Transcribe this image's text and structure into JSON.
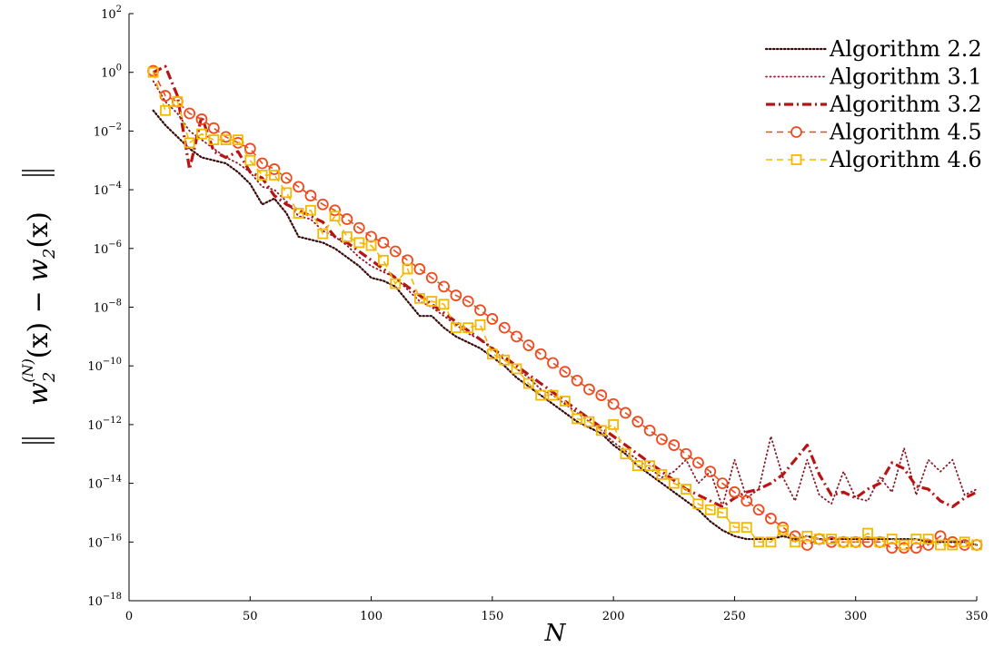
{
  "chart_data": {
    "type": "line",
    "title": "",
    "xlabel": "N",
    "ylabel": "‖w₂⁽ᴺ⁾(x) − w₂(x)‖",
    "ylabel_parts": {
      "w": "w",
      "sub": "2",
      "sup": "(N)",
      "mid": "(x) − ",
      "w2": "w",
      "sub2": "2",
      "end": "(x)"
    },
    "xlim": [
      0,
      350
    ],
    "ylim_log10": [
      -18,
      2
    ],
    "y_scale": "log",
    "grid": false,
    "legend_position": "top-right",
    "x_ticks": [
      {
        "value": 0,
        "label": "0"
      },
      {
        "value": 50,
        "label": "50"
      },
      {
        "value": 100,
        "label": "100"
      },
      {
        "value": 150,
        "label": "150"
      },
      {
        "value": 200,
        "label": "200"
      },
      {
        "value": 250,
        "label": "250"
      },
      {
        "value": 300,
        "label": "300"
      },
      {
        "value": 350,
        "label": "350"
      }
    ],
    "y_ticks": [
      {
        "exp": 2,
        "base": "10",
        "sup": "2"
      },
      {
        "exp": 0,
        "base": "10",
        "sup": "0"
      },
      {
        "exp": -2,
        "base": "10",
        "sup": "−2"
      },
      {
        "exp": -4,
        "base": "10",
        "sup": "−4"
      },
      {
        "exp": -6,
        "base": "10",
        "sup": "−6"
      },
      {
        "exp": -8,
        "base": "10",
        "sup": "−8"
      },
      {
        "exp": -10,
        "base": "10",
        "sup": "−10"
      },
      {
        "exp": -12,
        "base": "10",
        "sup": "−12"
      },
      {
        "exp": -14,
        "base": "10",
        "sup": "−14"
      },
      {
        "exp": -16,
        "base": "10",
        "sup": "−16"
      },
      {
        "exp": -18,
        "base": "10",
        "sup": "−18"
      }
    ],
    "series": [
      {
        "name": "Algorithm 2.2",
        "color": "#3a0a0a",
        "style": "loosely-dotted-dense",
        "marker": "none",
        "x": [
          10,
          15,
          20,
          25,
          30,
          35,
          40,
          45,
          50,
          55,
          60,
          65,
          70,
          75,
          80,
          85,
          90,
          95,
          100,
          105,
          110,
          115,
          120,
          125,
          130,
          135,
          140,
          145,
          150,
          155,
          160,
          165,
          170,
          175,
          180,
          185,
          190,
          195,
          200,
          205,
          210,
          215,
          220,
          225,
          230,
          235,
          240,
          245,
          250,
          255,
          260,
          265,
          270,
          275,
          280,
          285,
          290,
          295,
          300,
          305,
          310,
          315,
          320,
          325,
          330,
          335,
          340,
          345,
          350
        ],
        "y_log10": [
          -1.3,
          -1.8,
          -2.2,
          -2.6,
          -2.9,
          -3.0,
          -3.1,
          -3.4,
          -3.8,
          -4.5,
          -4.3,
          -4.8,
          -5.6,
          -5.7,
          -5.8,
          -6.0,
          -6.3,
          -6.6,
          -7.0,
          -7.1,
          -7.3,
          -7.8,
          -8.3,
          -8.3,
          -8.7,
          -9.0,
          -9.2,
          -9.4,
          -9.7,
          -10.0,
          -10.4,
          -10.7,
          -11.0,
          -11.3,
          -11.6,
          -11.9,
          -12.1,
          -12.3,
          -12.7,
          -13.0,
          -13.4,
          -13.7,
          -14.0,
          -14.3,
          -14.6,
          -14.9,
          -15.3,
          -15.6,
          -15.8,
          -15.9,
          -15.9,
          -15.9,
          -15.8,
          -15.9,
          -15.8,
          -15.9,
          -15.9,
          -15.9,
          -15.9,
          -15.9,
          -15.9,
          -15.9,
          -15.9,
          -15.9,
          -16.0,
          -16.0,
          -16.0,
          -16.0,
          -16.1
        ]
      },
      {
        "name": "Algorithm 3.1",
        "color": "#8b1a2a",
        "style": "dotted",
        "marker": "none",
        "x": [
          10,
          15,
          20,
          25,
          30,
          35,
          40,
          45,
          50,
          55,
          60,
          65,
          70,
          75,
          80,
          85,
          90,
          95,
          100,
          105,
          110,
          115,
          120,
          125,
          130,
          135,
          140,
          145,
          150,
          155,
          160,
          165,
          170,
          175,
          180,
          185,
          190,
          195,
          200,
          205,
          210,
          215,
          220,
          225,
          230,
          235,
          240,
          245,
          250,
          255,
          260,
          265,
          270,
          275,
          280,
          285,
          290,
          295,
          300,
          305,
          310,
          315,
          320,
          325,
          330,
          335,
          340,
          345,
          350
        ],
        "y_log10": [
          -0.3,
          -1.0,
          -1.4,
          -2.0,
          -2.3,
          -2.6,
          -2.9,
          -3.1,
          -3.4,
          -3.9,
          -4.0,
          -4.4,
          -4.9,
          -5.0,
          -5.4,
          -5.6,
          -5.9,
          -6.3,
          -6.6,
          -6.8,
          -7.0,
          -7.4,
          -7.8,
          -8.0,
          -8.3,
          -8.6,
          -8.9,
          -9.1,
          -9.4,
          -9.8,
          -10.1,
          -10.4,
          -10.8,
          -11.0,
          -11.3,
          -11.6,
          -11.9,
          -12.2,
          -12.6,
          -12.9,
          -13.2,
          -13.5,
          -13.8,
          -13.6,
          -13.2,
          -14.0,
          -13.6,
          -14.8,
          -13.2,
          -14.5,
          -14.2,
          -12.4,
          -13.8,
          -14.6,
          -13.2,
          -14.4,
          -14.7,
          -13.6,
          -14.5,
          -14.6,
          -13.8,
          -14.3,
          -12.8,
          -14.4,
          -13.2,
          -13.6,
          -13.2,
          -14.4,
          -14.2
        ]
      },
      {
        "name": "Algorithm 3.2",
        "color": "#b81414",
        "style": "dash-dot",
        "marker": "none",
        "x": [
          10,
          15,
          20,
          25,
          30,
          35,
          40,
          45,
          50,
          55,
          60,
          65,
          70,
          75,
          80,
          85,
          90,
          95,
          100,
          105,
          110,
          115,
          120,
          125,
          130,
          135,
          140,
          145,
          150,
          155,
          160,
          165,
          170,
          175,
          180,
          185,
          190,
          195,
          200,
          205,
          210,
          215,
          220,
          225,
          230,
          235,
          240,
          245,
          250,
          255,
          260,
          265,
          270,
          275,
          280,
          285,
          290,
          295,
          300,
          305,
          310,
          315,
          320,
          325,
          330,
          335,
          340,
          345,
          350
        ],
        "y_log10": [
          0.0,
          0.2,
          -0.8,
          -3.3,
          -1.5,
          -2.7,
          -2.9,
          -2.7,
          -3.4,
          -3.6,
          -4.2,
          -4.5,
          -4.7,
          -4.9,
          -5.1,
          -5.6,
          -5.8,
          -6.1,
          -6.4,
          -6.7,
          -7.0,
          -7.3,
          -7.6,
          -7.9,
          -8.2,
          -8.5,
          -8.8,
          -9.1,
          -9.4,
          -9.7,
          -10.0,
          -10.3,
          -10.6,
          -10.9,
          -11.2,
          -11.5,
          -11.8,
          -12.1,
          -12.4,
          -12.7,
          -13.0,
          -13.3,
          -13.6,
          -13.9,
          -14.2,
          -14.4,
          -14.6,
          -14.8,
          -14.5,
          -14.3,
          -14.2,
          -14.0,
          -13.7,
          -13.2,
          -12.7,
          -13.7,
          -14.4,
          -14.3,
          -14.5,
          -14.2,
          -14.0,
          -13.3,
          -13.5,
          -14.1,
          -14.2,
          -14.6,
          -14.8,
          -14.5,
          -14.3
        ]
      },
      {
        "name": "Algorithm 4.5",
        "color": "#ee4a1e",
        "style": "dashed",
        "marker": "circle",
        "x": [
          10,
          15,
          20,
          25,
          30,
          35,
          40,
          45,
          50,
          55,
          60,
          65,
          70,
          75,
          80,
          85,
          90,
          95,
          100,
          105,
          110,
          115,
          120,
          125,
          130,
          135,
          140,
          145,
          150,
          155,
          160,
          165,
          170,
          175,
          180,
          185,
          190,
          195,
          200,
          205,
          210,
          215,
          220,
          225,
          230,
          235,
          240,
          245,
          250,
          255,
          260,
          265,
          270,
          275,
          280,
          285,
          290,
          295,
          300,
          305,
          310,
          315,
          320,
          325,
          330,
          335,
          340,
          345,
          350
        ],
        "y_log10": [
          0.05,
          -0.8,
          -1.0,
          -1.4,
          -1.6,
          -1.9,
          -2.2,
          -2.4,
          -2.6,
          -3.1,
          -3.3,
          -3.6,
          -3.9,
          -4.2,
          -4.5,
          -4.7,
          -5.0,
          -5.3,
          -5.6,
          -5.8,
          -6.1,
          -6.4,
          -6.7,
          -7.0,
          -7.3,
          -7.6,
          -7.8,
          -8.1,
          -8.4,
          -8.7,
          -9.0,
          -9.3,
          -9.6,
          -9.9,
          -10.2,
          -10.5,
          -10.8,
          -11.0,
          -11.3,
          -11.6,
          -11.9,
          -12.2,
          -12.5,
          -12.7,
          -13.0,
          -13.3,
          -13.6,
          -14.0,
          -14.3,
          -14.6,
          -14.9,
          -15.2,
          -15.5,
          -15.8,
          -16.1,
          -15.9,
          -16.0,
          -16.0,
          -16.0,
          -16.0,
          -16.0,
          -16.2,
          -16.2,
          -16.2,
          -16.1,
          -15.8,
          -16.0,
          -16.1,
          -16.1
        ]
      },
      {
        "name": "Algorithm 4.6",
        "color": "#f5b800",
        "style": "dashed",
        "marker": "square",
        "x": [
          10,
          15,
          20,
          25,
          30,
          35,
          40,
          45,
          50,
          55,
          60,
          65,
          70,
          75,
          80,
          85,
          90,
          95,
          100,
          105,
          110,
          115,
          120,
          125,
          130,
          135,
          140,
          145,
          150,
          155,
          160,
          165,
          170,
          175,
          180,
          185,
          190,
          195,
          200,
          205,
          210,
          215,
          220,
          225,
          230,
          235,
          240,
          245,
          250,
          255,
          260,
          265,
          270,
          275,
          280,
          285,
          290,
          295,
          300,
          305,
          310,
          315,
          320,
          325,
          330,
          335,
          340,
          345,
          350
        ],
        "y_log10": [
          0.0,
          -1.3,
          -1.0,
          -2.4,
          -2.1,
          -2.3,
          -2.3,
          -2.3,
          -3.0,
          -3.5,
          -3.5,
          -4.1,
          -4.8,
          -4.7,
          -5.5,
          -4.9,
          -5.6,
          -5.8,
          -5.9,
          -6.4,
          -7.2,
          -6.7,
          -7.7,
          -7.8,
          -7.9,
          -8.7,
          -8.7,
          -8.6,
          -9.6,
          -9.8,
          -10.1,
          -10.6,
          -11.0,
          -11.0,
          -11.2,
          -11.8,
          -11.9,
          -12.2,
          -12.0,
          -13.0,
          -13.4,
          -13.4,
          -13.7,
          -14.0,
          -14.2,
          -14.7,
          -14.9,
          -15.0,
          -15.5,
          -15.5,
          -16.0,
          -16.0,
          -15.6,
          -16.0,
          -15.8,
          -15.9,
          -15.9,
          -16.0,
          -16.0,
          -15.7,
          -16.0,
          -15.9,
          -16.1,
          -15.9,
          -15.9,
          -16.1,
          -16.1,
          -16.0,
          -16.1
        ]
      }
    ]
  }
}
